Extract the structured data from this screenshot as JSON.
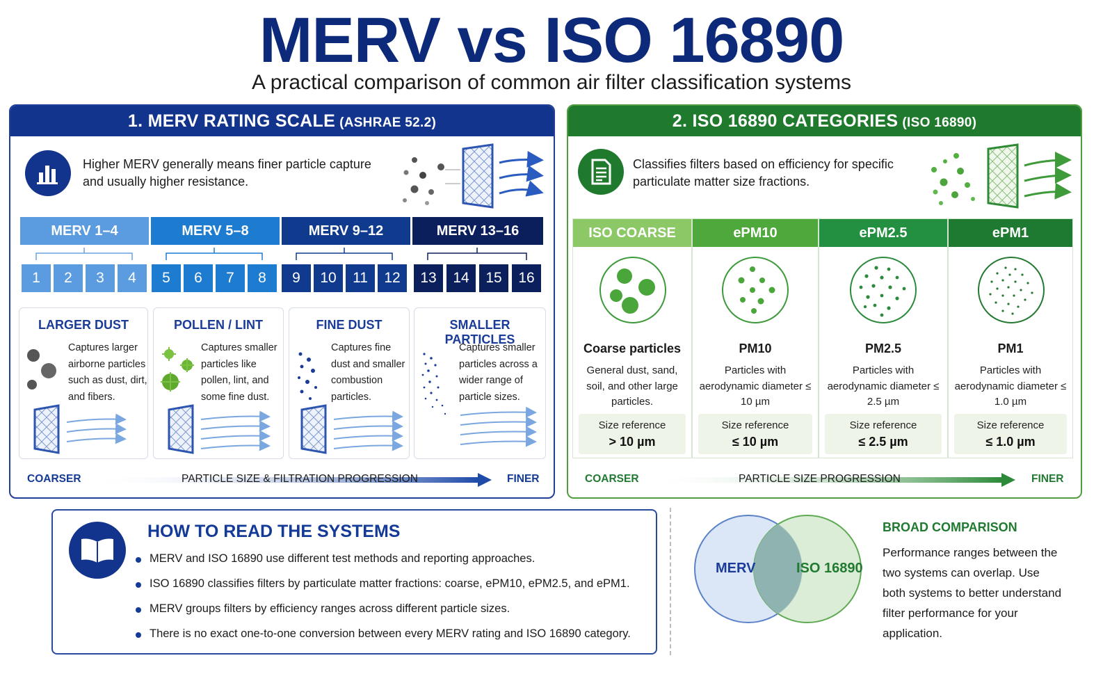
{
  "title": "MERV vs ISO 16890",
  "subtitle": "A practical comparison of common air filter classification systems",
  "colors": {
    "merv_navy": "#12348c",
    "iso_green": "#207a2e",
    "merv_light": "#5b9be0",
    "merv_mid": "#1d7bd0",
    "merv_dark": "#103a8e",
    "merv_darkest": "#0b1f5c",
    "iso_light": "#8cc865",
    "iso_mid": "#4fa83c",
    "iso_dark": "#239041",
    "iso_darkest": "#1e7a31"
  },
  "merv": {
    "header_main": "1. MERV RATING SCALE",
    "header_sub": "(ASHRAE 52.2)",
    "icon": "bar-chart-icon",
    "intro": "Higher MERV generally means finer particle capture and usually higher resistance.",
    "ranges": [
      "MERV 1–4",
      "MERV 5–8",
      "MERV 9–12",
      "MERV 13–16"
    ],
    "numbers": [
      "1",
      "2",
      "3",
      "4",
      "5",
      "6",
      "7",
      "8",
      "9",
      "10",
      "11",
      "12",
      "13",
      "14",
      "15",
      "16"
    ],
    "cards": [
      {
        "title": "LARGER DUST",
        "text": "Captures larger airborne particles such as dust, dirt, and fibers."
      },
      {
        "title": "POLLEN / LINT",
        "text": "Captures smaller particles like pollen, lint, and some fine dust."
      },
      {
        "title": "FINE DUST",
        "text": "Captures fine dust and smaller combustion particles."
      },
      {
        "title": "SMALLER PARTICLES",
        "text": "Captures smaller particles across a wider range of particle sizes."
      }
    ],
    "progression": {
      "left": "COARSER",
      "center": "PARTICLE SIZE & FILTRATION PROGRESSION",
      "right": "FINER"
    }
  },
  "iso": {
    "header_main": "2. ISO 16890 CATEGORIES",
    "header_sub": "(ISO 16890)",
    "icon": "document-icon",
    "intro": "Classifies filters based on efficiency for specific particulate matter size fractions.",
    "categories": [
      {
        "head": "ISO COARSE",
        "name": "Coarse particles",
        "desc": "General dust, sand, soil, and other large particles.",
        "ref_label": "Size reference",
        "ref_value": "> 10 µm"
      },
      {
        "head": "ePM10",
        "name": "PM10",
        "desc": "Particles with aerodynamic diameter ≤ 10 µm",
        "ref_label": "Size reference",
        "ref_value": "≤ 10 µm"
      },
      {
        "head": "ePM2.5",
        "name": "PM2.5",
        "desc": "Particles with aerodynamic diameter ≤ 2.5 µm",
        "ref_label": "Size reference",
        "ref_value": "≤ 2.5 µm"
      },
      {
        "head": "ePM1",
        "name": "PM1",
        "desc": "Particles with aerodynamic diameter ≤ 1.0 µm",
        "ref_label": "Size reference",
        "ref_value": "≤ 1.0 µm"
      }
    ],
    "progression": {
      "left": "COARSER",
      "center": "PARTICLE SIZE PROGRESSION",
      "right": "FINER"
    }
  },
  "howto": {
    "icon": "open-book-icon",
    "title": "HOW TO READ THE SYSTEMS",
    "bullets": [
      "MERV and ISO 16890 use different test methods and reporting approaches.",
      "ISO 16890 classifies filters by particulate matter fractions: coarse, ePM10, ePM2.5, and ePM1.",
      "MERV groups filters by efficiency ranges across different particle sizes.",
      "There is no exact one-to-one conversion between every MERV rating and ISO 16890 category."
    ]
  },
  "comparison": {
    "venn_left": "MERV",
    "venn_right": "ISO 16890",
    "title": "BROAD COMPARISON",
    "text": "Performance ranges between the two systems can overlap. Use both systems to better understand filter performance for your application."
  }
}
